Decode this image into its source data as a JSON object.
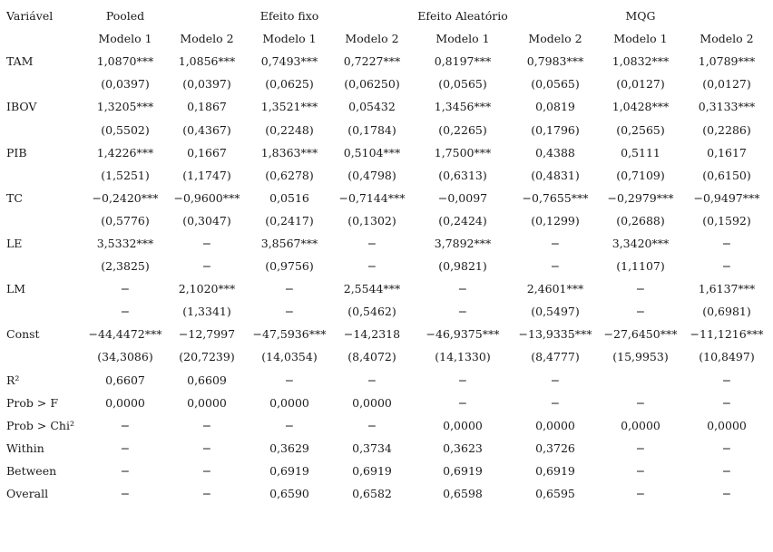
{
  "header": {
    "variable_label": "Variável",
    "groups": [
      "Pooled",
      "Efeito fixo",
      "Efeito Aleatório",
      "MQG"
    ],
    "models": [
      "Modelo 1",
      "Modelo 2",
      "Modelo 1",
      "Modelo 2",
      "Modelo 1",
      "Modelo 2",
      "Modelo 1",
      "Modelo 2"
    ]
  },
  "rows": [
    {
      "label": "TAM",
      "values": [
        "1,0870***",
        "1,0856***",
        "0,7493***",
        "0,7227***",
        "0,8197***",
        "0,7983***",
        "1,0832***",
        "1,0789***"
      ]
    },
    {
      "label": "",
      "values": [
        "(0,0397)",
        "(0,0397)",
        "(0,0625)",
        "(0,06250)",
        "(0,0565)",
        "(0,0565)",
        "(0,0127)",
        "(0,0127)"
      ]
    },
    {
      "label": "IBOV",
      "values": [
        "1,3205***",
        "0,1867",
        "1,3521***",
        "0,05432",
        "1,3456***",
        "0,0819",
        "1,0428***",
        "0,3133***"
      ]
    },
    {
      "label": "",
      "values": [
        "(0,5502)",
        "(0,4367)",
        "(0,2248)",
        "(0,1784)",
        "(0,2265)",
        "(0,1796)",
        "(0,2565)",
        "(0,2286)"
      ]
    },
    {
      "label": "PIB",
      "values": [
        "1,4226***",
        "0,1667",
        "1,8363***",
        "0,5104***",
        "1,7500***",
        "0,4388",
        "0,5111",
        "0,1617"
      ]
    },
    {
      "label": "",
      "values": [
        "(1,5251)",
        "(1,1747)",
        "(0,6278)",
        "(0,4798)",
        "(0,6313)",
        "(0,4831)",
        "(0,7109)",
        "(0,6150)"
      ]
    },
    {
      "label": "TC",
      "values": [
        "−0,2420***",
        "−0,9600***",
        "0,0516",
        "−0,7144***",
        "−0,0097",
        "−0,7655***",
        "−0,2979***",
        "−0,9497***"
      ]
    },
    {
      "label": "",
      "values": [
        "(0,5776)",
        "(0,3047)",
        "(0,2417)",
        "(0,1302)",
        "(0,2424)",
        "(0,1299)",
        "(0,2688)",
        "(0,1592)"
      ]
    },
    {
      "label": "LE",
      "values": [
        "3,5332***",
        "−",
        "3,8567***",
        "−",
        "3,7892***",
        "−",
        "3,3420***",
        "−"
      ]
    },
    {
      "label": "",
      "values": [
        "(2,3825)",
        "−",
        "(0,9756)",
        "−",
        "(0,9821)",
        "−",
        "(1,1107)",
        "−"
      ]
    },
    {
      "label": "LM",
      "values": [
        "−",
        "2,1020***",
        "−",
        "2,5544***",
        "−",
        "2,4601***",
        "−",
        "1,6137***"
      ]
    },
    {
      "label": "",
      "values": [
        "−",
        "(1,3341)",
        "−",
        "(0,5462)",
        "−",
        "(0,5497)",
        "−",
        "(0,6981)"
      ]
    },
    {
      "label": "Const",
      "values": [
        "−44,4472***",
        "−12,7997",
        "−47,5936***",
        "−14,2318",
        "−46,9375***",
        "−13,9335***",
        "−27,6450***",
        "−11,1216***"
      ]
    },
    {
      "label": "",
      "values": [
        "(34,3086)",
        "(20,7239)",
        "(14,0354)",
        "(8,4072)",
        "(14,1330)",
        "(8,4777)",
        "(15,9953)",
        "(10,8497)"
      ]
    },
    {
      "label": "R²",
      "values": [
        "0,6607",
        "0,6609",
        "−",
        "−",
        "−",
        "−",
        "",
        "−"
      ]
    },
    {
      "label": "Prob > F",
      "values": [
        "0,0000",
        "0,0000",
        "0,0000",
        "0,0000",
        "−",
        "−",
        "−",
        "−"
      ]
    },
    {
      "label": "Prob > Chi²",
      "values": [
        "−",
        "−",
        "−",
        "−",
        "0,0000",
        "0,0000",
        "0,0000",
        "0,0000"
      ]
    },
    {
      "label": "Within",
      "values": [
        "−",
        "−",
        "0,3629",
        "0,3734",
        "0,3623",
        "0,3726",
        "−",
        "−"
      ]
    },
    {
      "label": "Between",
      "values": [
        "−",
        "−",
        "0,6919",
        "0,6919",
        "0,6919",
        "0,6919",
        "−",
        "−"
      ]
    },
    {
      "label": "Overall",
      "values": [
        "−",
        "−",
        "0,6590",
        "0,6582",
        "0,6598",
        "0,6595",
        "−",
        "−"
      ]
    }
  ]
}
